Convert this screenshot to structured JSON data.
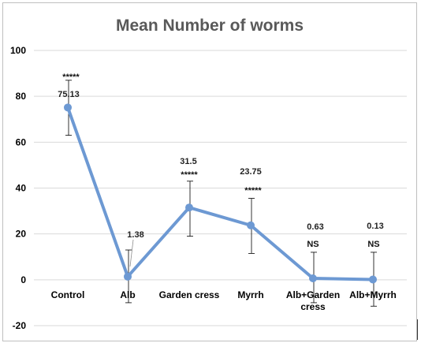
{
  "chart_data": {
    "type": "line",
    "title": "Mean Number of worms",
    "xlabel": "",
    "ylabel": "",
    "ylim": [
      -20,
      100
    ],
    "yticks": [
      -20,
      0,
      20,
      40,
      60,
      80,
      100
    ],
    "grid": true,
    "legend": "none",
    "categories": [
      "Control",
      "Alb",
      "Garden cress",
      "Myrrh",
      "Alb+Garden cress",
      "Alb+Myrrh"
    ],
    "values": [
      75.13,
      1.38,
      31.5,
      23.75,
      0.63,
      0.13
    ],
    "data_labels": [
      "75.13",
      "1.38",
      "31.5",
      "23.75",
      "0.63",
      "0.13"
    ],
    "error_bars": [
      {
        "low": 63,
        "high": 87
      },
      {
        "low": -10,
        "high": 13
      },
      {
        "low": 19,
        "high": 43
      },
      {
        "low": 11.5,
        "high": 35.5
      },
      {
        "low": -10,
        "high": 12
      },
      {
        "low": -11.5,
        "high": 12
      }
    ],
    "significance": [
      "*****",
      "",
      "*****",
      "*****",
      "NS",
      "NS"
    ],
    "colors": {
      "line": "#6d99d3",
      "marker": "#6d99d3",
      "grid": "#d9d9d9",
      "error": "#000000"
    }
  }
}
